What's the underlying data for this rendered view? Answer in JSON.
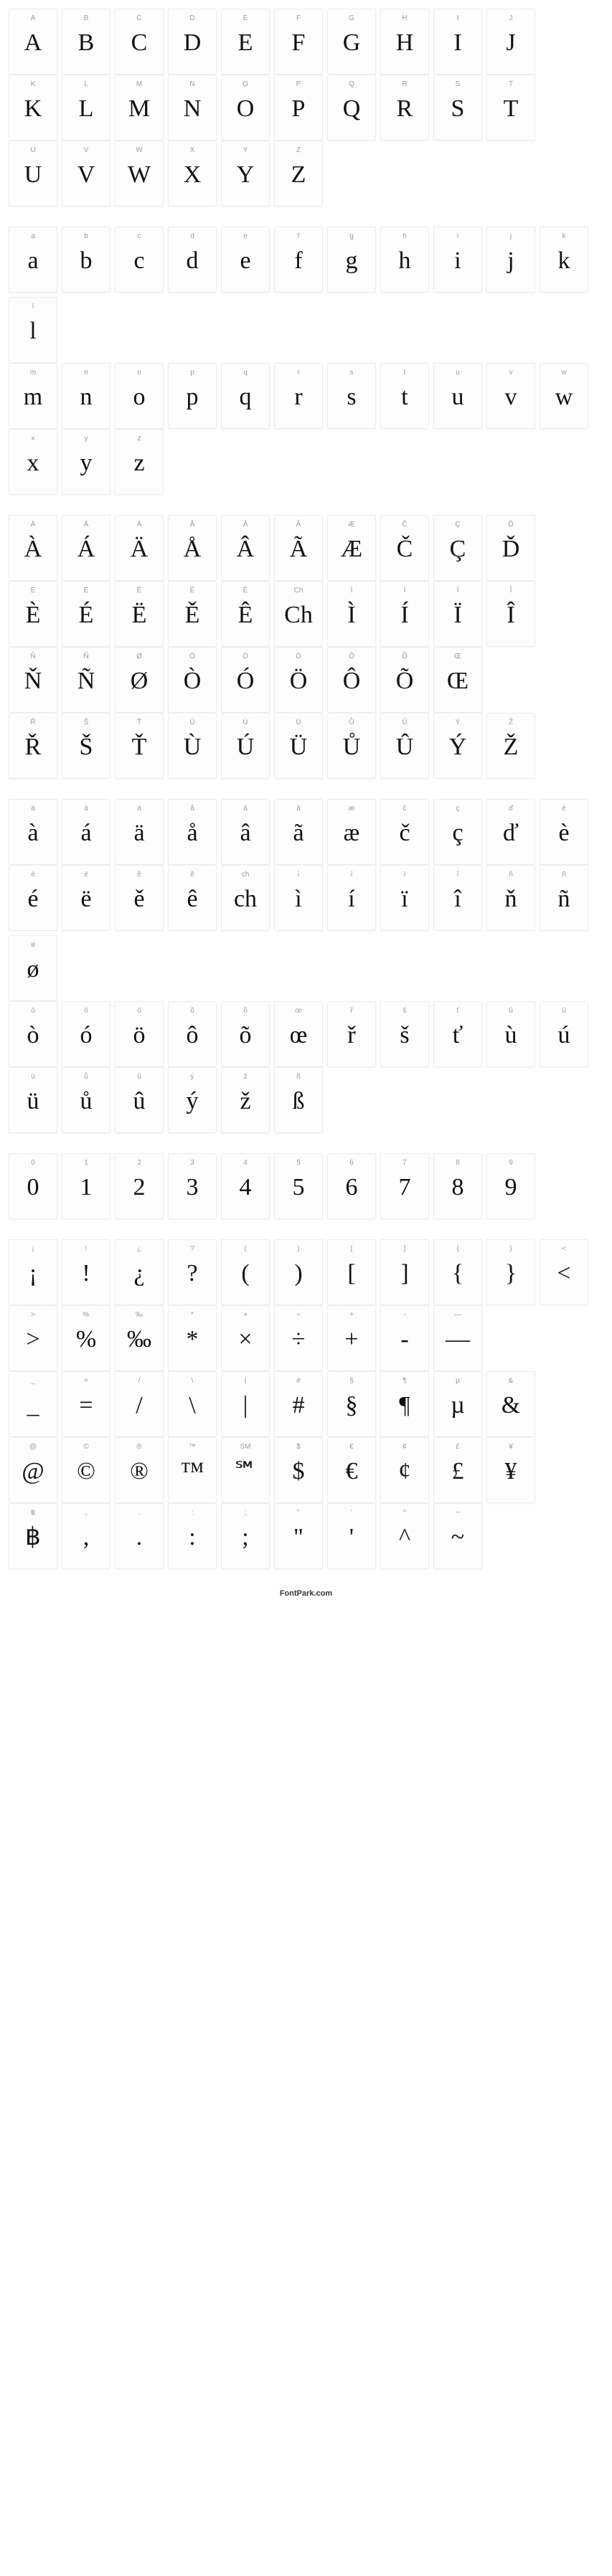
{
  "footer": "FontPark.com",
  "sections": [
    {
      "rows": [
        [
          {
            "key": "A",
            "glyph": "A"
          },
          {
            "key": "B",
            "glyph": "B"
          },
          {
            "key": "C",
            "glyph": "C"
          },
          {
            "key": "D",
            "glyph": "D"
          },
          {
            "key": "E",
            "glyph": "E"
          },
          {
            "key": "F",
            "glyph": "F"
          },
          {
            "key": "G",
            "glyph": "G"
          },
          {
            "key": "H",
            "glyph": "H"
          },
          {
            "key": "I",
            "glyph": "I"
          },
          {
            "key": "J",
            "glyph": "J"
          }
        ],
        [
          {
            "key": "K",
            "glyph": "K"
          },
          {
            "key": "L",
            "glyph": "L"
          },
          {
            "key": "M",
            "glyph": "M"
          },
          {
            "key": "N",
            "glyph": "N"
          },
          {
            "key": "O",
            "glyph": "O"
          },
          {
            "key": "P",
            "glyph": "P"
          },
          {
            "key": "Q",
            "glyph": "Q"
          },
          {
            "key": "R",
            "glyph": "R"
          },
          {
            "key": "S",
            "glyph": "S"
          },
          {
            "key": "T",
            "glyph": "T"
          }
        ],
        [
          {
            "key": "U",
            "glyph": "U"
          },
          {
            "key": "V",
            "glyph": "V"
          },
          {
            "key": "W",
            "glyph": "W"
          },
          {
            "key": "X",
            "glyph": "X"
          },
          {
            "key": "Y",
            "glyph": "Y"
          },
          {
            "key": "Z",
            "glyph": "Z"
          }
        ]
      ]
    },
    {
      "rows": [
        [
          {
            "key": "a",
            "glyph": "a"
          },
          {
            "key": "b",
            "glyph": "b"
          },
          {
            "key": "c",
            "glyph": "c"
          },
          {
            "key": "d",
            "glyph": "d"
          },
          {
            "key": "e",
            "glyph": "e"
          },
          {
            "key": "f",
            "glyph": "f"
          },
          {
            "key": "g",
            "glyph": "g"
          },
          {
            "key": "h",
            "glyph": "h"
          },
          {
            "key": "i",
            "glyph": "i"
          },
          {
            "key": "j",
            "glyph": "j"
          },
          {
            "key": "k",
            "glyph": "k"
          },
          {
            "key": "l",
            "glyph": "l"
          }
        ],
        [
          {
            "key": "m",
            "glyph": "m"
          },
          {
            "key": "n",
            "glyph": "n"
          },
          {
            "key": "o",
            "glyph": "o"
          },
          {
            "key": "p",
            "glyph": "p"
          },
          {
            "key": "q",
            "glyph": "q"
          },
          {
            "key": "r",
            "glyph": "r"
          },
          {
            "key": "s",
            "glyph": "s"
          },
          {
            "key": "t",
            "glyph": "t"
          },
          {
            "key": "u",
            "glyph": "u"
          },
          {
            "key": "v",
            "glyph": "v"
          },
          {
            "key": "w",
            "glyph": "w"
          }
        ],
        [
          {
            "key": "x",
            "glyph": "x"
          },
          {
            "key": "y",
            "glyph": "y"
          },
          {
            "key": "z",
            "glyph": "z"
          }
        ]
      ]
    },
    {
      "rows": [
        [
          {
            "key": "À",
            "glyph": "À"
          },
          {
            "key": "Á",
            "glyph": "Á"
          },
          {
            "key": "Ä",
            "glyph": "Ä"
          },
          {
            "key": "Å",
            "glyph": "Å"
          },
          {
            "key": "Â",
            "glyph": "Â"
          },
          {
            "key": "Ã",
            "glyph": "Ã"
          },
          {
            "key": "Æ",
            "glyph": "Æ"
          },
          {
            "key": "Č",
            "glyph": "Č"
          },
          {
            "key": "Ç",
            "glyph": "Ç"
          },
          {
            "key": "Ď",
            "glyph": "Ď"
          }
        ],
        [
          {
            "key": "È",
            "glyph": "È"
          },
          {
            "key": "É",
            "glyph": "É"
          },
          {
            "key": "Ë",
            "glyph": "Ë"
          },
          {
            "key": "Ě",
            "glyph": "Ě"
          },
          {
            "key": "Ê",
            "glyph": "Ê"
          },
          {
            "key": "Ch",
            "glyph": "Ch"
          },
          {
            "key": "Ì",
            "glyph": "Ì"
          },
          {
            "key": "Í",
            "glyph": "Í"
          },
          {
            "key": "Ï",
            "glyph": "Ï"
          },
          {
            "key": "Î",
            "glyph": "Î"
          }
        ],
        [
          {
            "key": "Ň",
            "glyph": "Ň"
          },
          {
            "key": "Ñ",
            "glyph": "Ñ"
          },
          {
            "key": "Ø",
            "glyph": "Ø"
          },
          {
            "key": "Ò",
            "glyph": "Ò"
          },
          {
            "key": "Ó",
            "glyph": "Ó"
          },
          {
            "key": "Ö",
            "glyph": "Ö"
          },
          {
            "key": "Ô",
            "glyph": "Ô"
          },
          {
            "key": "Õ",
            "glyph": "Õ"
          },
          {
            "key": "Œ",
            "glyph": "Œ"
          }
        ],
        [
          {
            "key": "Ř",
            "glyph": "Ř"
          },
          {
            "key": "Š",
            "glyph": "Š"
          },
          {
            "key": "Ť",
            "glyph": "Ť"
          },
          {
            "key": "Ù",
            "glyph": "Ù"
          },
          {
            "key": "Ú",
            "glyph": "Ú"
          },
          {
            "key": "Ü",
            "glyph": "Ü"
          },
          {
            "key": "Ů",
            "glyph": "Ů"
          },
          {
            "key": "Û",
            "glyph": "Û"
          },
          {
            "key": "Ý",
            "glyph": "Ý"
          },
          {
            "key": "Ž",
            "glyph": "Ž"
          }
        ]
      ]
    },
    {
      "rows": [
        [
          {
            "key": "à",
            "glyph": "à"
          },
          {
            "key": "á",
            "glyph": "á"
          },
          {
            "key": "ä",
            "glyph": "ä"
          },
          {
            "key": "å",
            "glyph": "å"
          },
          {
            "key": "â",
            "glyph": "â"
          },
          {
            "key": "ã",
            "glyph": "ã"
          },
          {
            "key": "æ",
            "glyph": "æ"
          },
          {
            "key": "č",
            "glyph": "č"
          },
          {
            "key": "ç",
            "glyph": "ç"
          },
          {
            "key": "ď",
            "glyph": "ď"
          },
          {
            "key": "è",
            "glyph": "è"
          }
        ],
        [
          {
            "key": "é",
            "glyph": "é"
          },
          {
            "key": "ë",
            "glyph": "ë"
          },
          {
            "key": "ě",
            "glyph": "ě"
          },
          {
            "key": "ê",
            "glyph": "ê"
          },
          {
            "key": "ch",
            "glyph": "ch"
          },
          {
            "key": "ì",
            "glyph": "ì"
          },
          {
            "key": "í",
            "glyph": "í"
          },
          {
            "key": "ï",
            "glyph": "ï"
          },
          {
            "key": "î",
            "glyph": "î"
          },
          {
            "key": "ň",
            "glyph": "ň"
          },
          {
            "key": "ñ",
            "glyph": "ñ"
          },
          {
            "key": "ø",
            "glyph": "ø"
          }
        ],
        [
          {
            "key": "ò",
            "glyph": "ò"
          },
          {
            "key": "ó",
            "glyph": "ó"
          },
          {
            "key": "ö",
            "glyph": "ö"
          },
          {
            "key": "ô",
            "glyph": "ô"
          },
          {
            "key": "õ",
            "glyph": "õ"
          },
          {
            "key": "œ",
            "glyph": "œ"
          },
          {
            "key": "ř",
            "glyph": "ř"
          },
          {
            "key": "š",
            "glyph": "š"
          },
          {
            "key": "ť",
            "glyph": "ť"
          },
          {
            "key": "ù",
            "glyph": "ù"
          },
          {
            "key": "ú",
            "glyph": "ú"
          }
        ],
        [
          {
            "key": "ü",
            "glyph": "ü"
          },
          {
            "key": "ů",
            "glyph": "ů"
          },
          {
            "key": "û",
            "glyph": "û"
          },
          {
            "key": "ý",
            "glyph": "ý"
          },
          {
            "key": "ž",
            "glyph": "ž"
          },
          {
            "key": "ß",
            "glyph": "ß"
          }
        ]
      ]
    },
    {
      "rows": [
        [
          {
            "key": "0",
            "glyph": "0"
          },
          {
            "key": "1",
            "glyph": "1"
          },
          {
            "key": "2",
            "glyph": "2"
          },
          {
            "key": "3",
            "glyph": "3"
          },
          {
            "key": "4",
            "glyph": "4"
          },
          {
            "key": "5",
            "glyph": "5"
          },
          {
            "key": "6",
            "glyph": "6"
          },
          {
            "key": "7",
            "glyph": "7"
          },
          {
            "key": "8",
            "glyph": "8"
          },
          {
            "key": "9",
            "glyph": "9"
          }
        ]
      ]
    },
    {
      "rows": [
        [
          {
            "key": "¡",
            "glyph": "¡"
          },
          {
            "key": "!",
            "glyph": "!"
          },
          {
            "key": "¿",
            "glyph": "¿"
          },
          {
            "key": "?",
            "glyph": "?"
          },
          {
            "key": "(",
            "glyph": "("
          },
          {
            "key": ")",
            "glyph": ")"
          },
          {
            "key": "[",
            "glyph": "["
          },
          {
            "key": "]",
            "glyph": "]"
          },
          {
            "key": "{",
            "glyph": "{"
          },
          {
            "key": "}",
            "glyph": "}"
          },
          {
            "key": "<",
            "glyph": "<"
          }
        ],
        [
          {
            "key": ">",
            "glyph": ">"
          },
          {
            "key": "%",
            "glyph": "%"
          },
          {
            "key": "‰",
            "glyph": "‰"
          },
          {
            "key": "*",
            "glyph": "*"
          },
          {
            "key": "×",
            "glyph": "×"
          },
          {
            "key": "÷",
            "glyph": "÷"
          },
          {
            "key": "+",
            "glyph": "+"
          },
          {
            "key": "-",
            "glyph": "-"
          },
          {
            "key": "—",
            "glyph": "—"
          }
        ],
        [
          {
            "key": "_",
            "glyph": "_"
          },
          {
            "key": "=",
            "glyph": "="
          },
          {
            "key": "/",
            "glyph": "/"
          },
          {
            "key": "\\",
            "glyph": "\\"
          },
          {
            "key": "|",
            "glyph": "|"
          },
          {
            "key": "#",
            "glyph": "#"
          },
          {
            "key": "§",
            "glyph": "§"
          },
          {
            "key": "¶",
            "glyph": "¶"
          },
          {
            "key": "µ",
            "glyph": "µ"
          },
          {
            "key": "&",
            "glyph": "&"
          }
        ],
        [
          {
            "key": "@",
            "glyph": "@"
          },
          {
            "key": "©",
            "glyph": "©"
          },
          {
            "key": "®",
            "glyph": "®"
          },
          {
            "key": "™",
            "glyph": "™"
          },
          {
            "key": "SM",
            "glyph": "℠"
          },
          {
            "key": "$",
            "glyph": "$"
          },
          {
            "key": "€",
            "glyph": "€"
          },
          {
            "key": "¢",
            "glyph": "¢"
          },
          {
            "key": "£",
            "glyph": "£"
          },
          {
            "key": "¥",
            "glyph": "¥"
          }
        ],
        [
          {
            "key": "฿",
            "glyph": "฿"
          },
          {
            "key": ",",
            "glyph": ","
          },
          {
            "key": ".",
            "glyph": "."
          },
          {
            "key": ":",
            "glyph": ":"
          },
          {
            "key": ";",
            "glyph": ";"
          },
          {
            "key": "\"",
            "glyph": "\""
          },
          {
            "key": "'",
            "glyph": "'"
          },
          {
            "key": "^",
            "glyph": "^"
          },
          {
            "key": "~",
            "glyph": "~"
          }
        ]
      ]
    }
  ]
}
